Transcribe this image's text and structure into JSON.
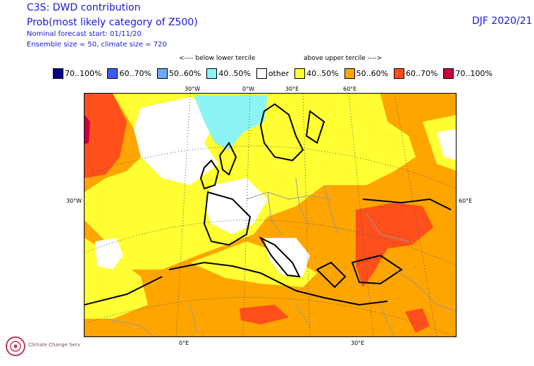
{
  "header": {
    "title_line1": "C3S: DWD contribution",
    "title_line2": "Prob(most likely category of Z500)",
    "forecast_start": "Nominal forecast start: 01/11/20",
    "ensemble": "Ensemble size = 50, climate size = 720",
    "season": "DJF 2020/21"
  },
  "legend": {
    "below_header": "<---- below lower tercile",
    "above_header": "above upper tercile ---->",
    "items": [
      {
        "label": "70..100%",
        "color": "#00008c"
      },
      {
        "label": "60..70%",
        "color": "#3a5cff"
      },
      {
        "label": "50..60%",
        "color": "#6aaaff"
      },
      {
        "label": "40..50%",
        "color": "#8cf4f4"
      },
      {
        "label": "other",
        "color": "#ffffff"
      },
      {
        "label": "40..50%",
        "color": "#ffff33"
      },
      {
        "label": "50..60%",
        "color": "#ffa500"
      },
      {
        "label": "60..70%",
        "color": "#ff4f1a"
      },
      {
        "label": "70..100%",
        "color": "#c8003c"
      }
    ]
  },
  "map": {
    "top_ticks": [
      "30°W",
      "0°W",
      "30°E",
      "60°E"
    ],
    "left_tick": "30°W",
    "right_tick": "60°E",
    "bottom_ticks": [
      "0°E",
      "30°E"
    ]
  },
  "logo": {
    "name": "Climate Change Service"
  }
}
